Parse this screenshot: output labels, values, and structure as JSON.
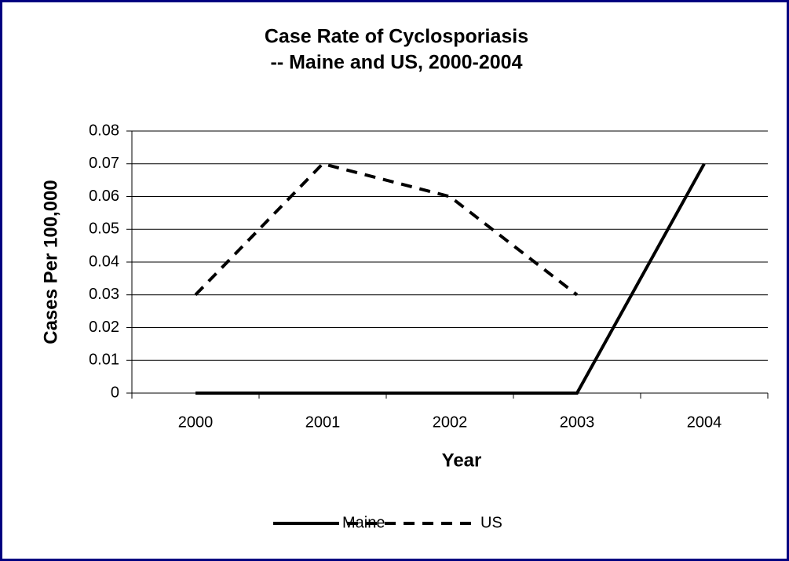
{
  "chart_data": {
    "type": "line",
    "title": [
      "Case Rate of Cyclosporiasis",
      "-- Maine and US, 2000-2004"
    ],
    "x_label": "Year",
    "y_label": "Cases Per 100,000",
    "categories": [
      "2000",
      "2001",
      "2002",
      "2003",
      "2004"
    ],
    "series": [
      {
        "name": "Maine",
        "color": "#000000",
        "line_style": "solid",
        "values": [
          0,
          0,
          0,
          0,
          0.07
        ]
      },
      {
        "name": "US",
        "color": "#000000",
        "line_style": "dashed",
        "values": [
          0.03,
          0.07,
          0.06,
          0.03,
          null
        ]
      }
    ],
    "ylim": [
      0,
      0.08
    ],
    "yticks": [
      0,
      0.01,
      0.02,
      0.03,
      0.04,
      0.05,
      0.06,
      0.07,
      0.08
    ],
    "grid": true,
    "legend": "bottom"
  }
}
